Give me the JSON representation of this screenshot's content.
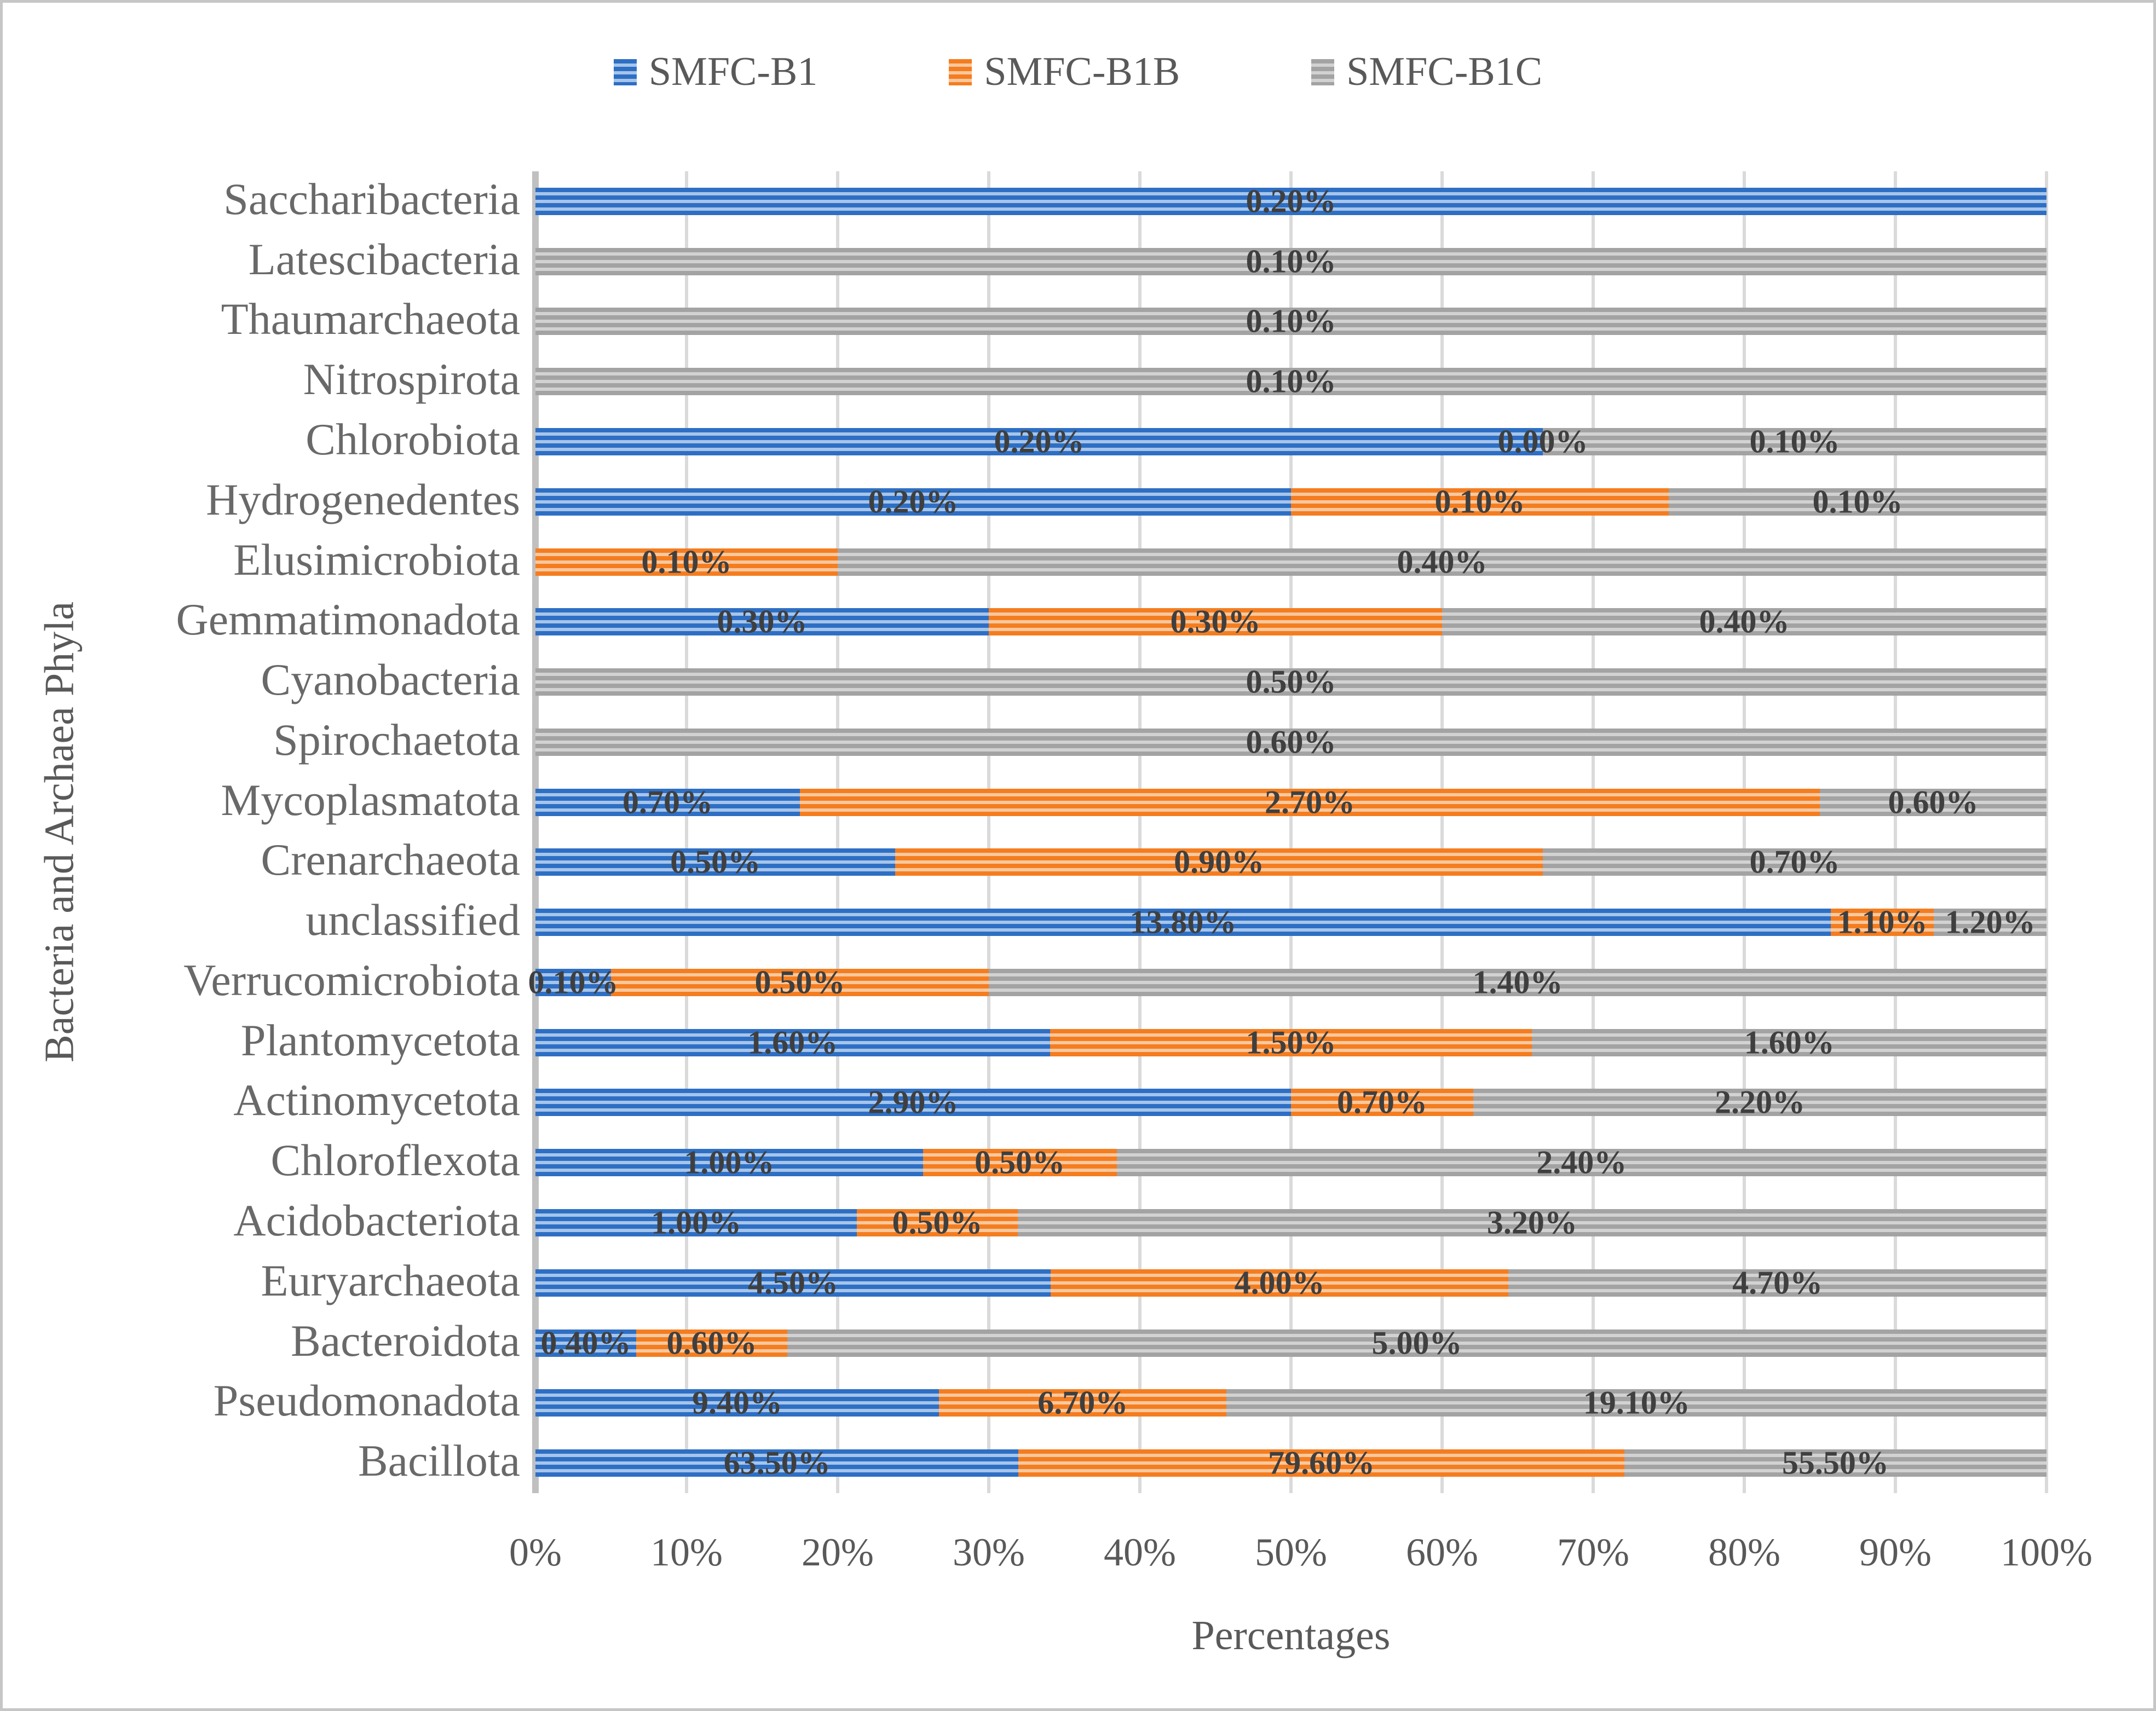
{
  "chart_data": {
    "type": "bar",
    "subtype": "stacked-100-percent",
    "orientation": "horizontal",
    "title": "",
    "xlabel": "Percentages",
    "ylabel": "Bacteria and Archaea Phyla",
    "x_ticks": [
      "0%",
      "10%",
      "20%",
      "30%",
      "40%",
      "50%",
      "60%",
      "70%",
      "80%",
      "90%",
      "100%"
    ],
    "xlim": [
      0,
      100
    ],
    "grid": true,
    "legend_position": "top",
    "value_label_format": "two-decimal-percent",
    "categories": [
      "Saccharibacteria",
      "Latescibacteria",
      "Thaumarchaeota",
      "Nitrospirota",
      "Chlorobiota",
      "Hydrogenedentes",
      "Elusimicrobiota",
      "Gemmatimonadota",
      "Cyanobacteria",
      "Spirochaetota",
      "Mycoplasmatota",
      "Crenarchaeota",
      "unclassified",
      "Verrucomicrobiota",
      "Plantomycetota",
      "Actinomycetota",
      "Chloroflexota",
      "Acidobacteriota",
      "Euryarchaeota",
      "Bacteroidota",
      "Pseudomonadota",
      "Bacillota"
    ],
    "series": [
      {
        "name": "SMFC-B1",
        "color_dark": "#2e6fc4",
        "color_light": "#a6c5ea",
        "values": [
          0.2,
          null,
          null,
          null,
          0.2,
          0.2,
          null,
          0.3,
          null,
          null,
          0.7,
          0.5,
          13.8,
          0.1,
          1.6,
          2.9,
          1.0,
          1.0,
          4.5,
          0.4,
          9.4,
          63.5
        ]
      },
      {
        "name": "SMFC-B1B",
        "color_dark": "#f47d20",
        "color_light": "#f9c89e",
        "values": [
          null,
          null,
          null,
          null,
          0.0,
          0.1,
          0.1,
          0.3,
          null,
          null,
          2.7,
          0.9,
          1.1,
          0.5,
          1.5,
          0.7,
          0.5,
          0.5,
          4.0,
          0.6,
          6.7,
          79.6
        ]
      },
      {
        "name": "SMFC-B1C",
        "color_dark": "#a3a3a3",
        "color_light": "#d2d2d2",
        "values": [
          null,
          0.1,
          0.1,
          0.1,
          0.1,
          0.1,
          0.4,
          0.4,
          0.5,
          0.6,
          0.6,
          0.7,
          1.2,
          1.4,
          1.6,
          2.2,
          2.4,
          3.2,
          4.7,
          5.0,
          19.1,
          55.5
        ]
      }
    ]
  },
  "style": {
    "grid_color": "#dadada",
    "axis_line_color": "#c0c0c0",
    "text_color": "#595959",
    "category_text_color": "#696969",
    "data_label_color": "#3f3f3f",
    "frame_color": "#c6c6c6",
    "background": "#ffffff"
  }
}
